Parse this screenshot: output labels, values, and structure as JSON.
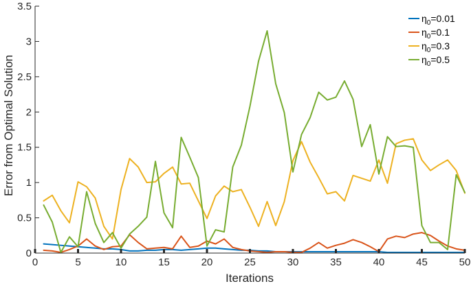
{
  "chart_data": {
    "type": "line",
    "xlabel": "Iterations",
    "ylabel": "Error from Optimal Solution",
    "xlim": [
      0,
      50
    ],
    "ylim": [
      0,
      3.5
    ],
    "xticks": [
      "0",
      "5",
      "10",
      "15",
      "20",
      "25",
      "30",
      "35",
      "40",
      "45",
      "50"
    ],
    "yticks": [
      "0",
      "0.5",
      "1",
      "1.5",
      "2",
      "2.5",
      "3",
      "3.5"
    ],
    "grid": false,
    "legend_position": "top-right",
    "x": [
      1,
      2,
      3,
      4,
      5,
      6,
      7,
      8,
      9,
      10,
      11,
      12,
      13,
      14,
      15,
      16,
      17,
      18,
      19,
      20,
      21,
      22,
      23,
      24,
      25,
      26,
      27,
      28,
      29,
      30,
      31,
      32,
      33,
      34,
      35,
      36,
      37,
      38,
      39,
      40,
      41,
      42,
      43,
      44,
      45,
      46,
      47,
      48,
      49,
      50
    ],
    "series": [
      {
        "name_main": "η",
        "name_sub": "0",
        "name_rest": "=0.01",
        "color": "#0072BD",
        "values": [
          0.13,
          0.12,
          0.11,
          0.1,
          0.09,
          0.08,
          0.07,
          0.06,
          0.06,
          0.05,
          0.03,
          0.03,
          0.04,
          0.04,
          0.05,
          0.05,
          0.04,
          0.05,
          0.06,
          0.07,
          0.07,
          0.06,
          0.05,
          0.04,
          0.04,
          0.03,
          0.03,
          0.02,
          0.02,
          0.02,
          0.02,
          0.02,
          0.02,
          0.02,
          0.02,
          0.02,
          0.02,
          0.02,
          0.02,
          0.02,
          0.01,
          0.01,
          0.01,
          0.01,
          0.01,
          0.01,
          0.01,
          0.01,
          0.01,
          0.01
        ]
      },
      {
        "name_main": "η",
        "name_sub": "0",
        "name_rest": "=0.1",
        "color": "#D95319",
        "values": [
          0.04,
          0.03,
          0.01,
          0.05,
          0.1,
          0.2,
          0.1,
          0.05,
          0.09,
          0.1,
          0.26,
          0.15,
          0.06,
          0.07,
          0.08,
          0.06,
          0.24,
          0.08,
          0.1,
          0.17,
          0.13,
          0.2,
          0.08,
          0.05,
          0.03,
          0.02,
          0.01,
          0.02,
          0.02,
          0.01,
          0.01,
          0.07,
          0.15,
          0.07,
          0.11,
          0.14,
          0.19,
          0.15,
          0.09,
          0.02,
          0.2,
          0.24,
          0.22,
          0.27,
          0.29,
          0.25,
          0.17,
          0.1,
          0.06,
          0.04
        ]
      },
      {
        "name_main": "η",
        "name_sub": "0",
        "name_rest": "=0.3",
        "color": "#EDB120",
        "values": [
          0.74,
          0.82,
          0.6,
          0.43,
          1.01,
          0.94,
          0.78,
          0.38,
          0.2,
          0.9,
          1.34,
          1.22,
          1.0,
          1.01,
          1.13,
          1.22,
          0.98,
          0.99,
          0.74,
          0.49,
          0.81,
          0.95,
          0.87,
          0.9,
          0.65,
          0.38,
          0.73,
          0.39,
          0.73,
          1.31,
          1.58,
          1.29,
          1.07,
          0.84,
          0.87,
          0.74,
          1.1,
          1.06,
          1.02,
          1.32,
          0.99,
          1.55,
          1.6,
          1.62,
          1.32,
          1.17,
          1.25,
          1.32,
          1.17,
          0.85
        ]
      },
      {
        "name_main": "η",
        "name_sub": "0",
        "name_rest": "=0.5",
        "color": "#77AC30",
        "values": [
          0.68,
          0.44,
          0.01,
          0.23,
          0.09,
          0.87,
          0.42,
          0.15,
          0.29,
          0.07,
          0.27,
          0.38,
          0.51,
          1.3,
          0.57,
          0.36,
          1.64,
          1.36,
          1.07,
          0.1,
          0.33,
          0.3,
          1.22,
          1.53,
          2.08,
          2.72,
          3.15,
          2.4,
          1.99,
          1.15,
          1.68,
          1.92,
          2.28,
          2.17,
          2.21,
          2.44,
          2.18,
          1.51,
          1.82,
          1.12,
          1.65,
          1.51,
          1.52,
          1.5,
          0.39,
          0.15,
          0.15,
          0.05,
          1.11,
          0.86
        ]
      }
    ]
  }
}
